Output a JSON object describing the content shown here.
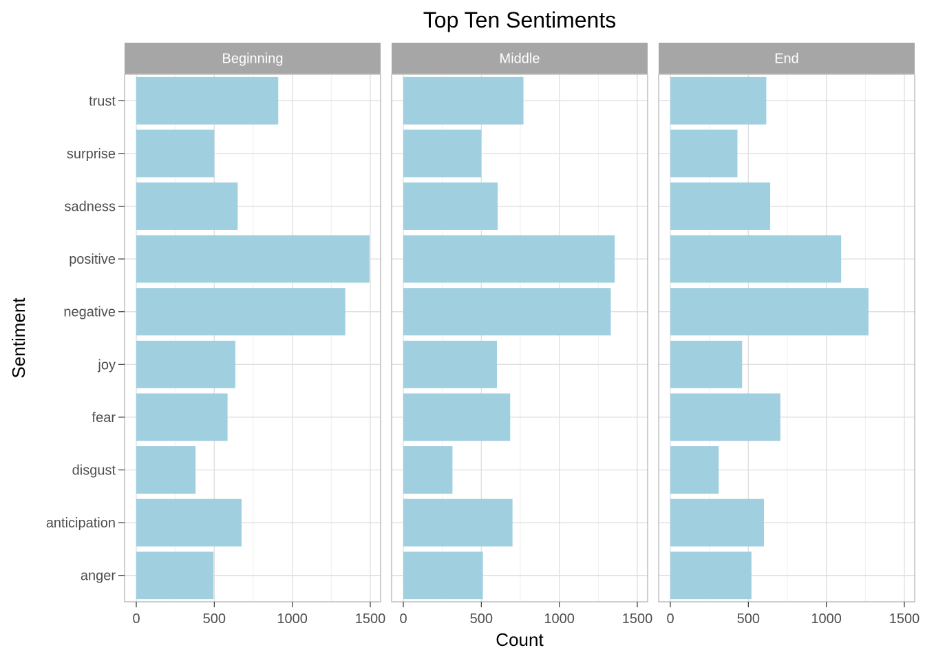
{
  "chart_data": {
    "type": "bar",
    "orientation": "horizontal",
    "title": "Top Ten Sentiments",
    "xlabel": "Count",
    "ylabel": "Sentiment",
    "xlim": [
      0,
      1550
    ],
    "xticks": [
      0,
      500,
      1000,
      1500
    ],
    "xtick_labels": [
      "0",
      "500",
      "1000",
      "1500"
    ],
    "grid": true,
    "categories": [
      "trust",
      "surprise",
      "sadness",
      "positive",
      "negative",
      "joy",
      "fear",
      "disgust",
      "anticipation",
      "anger"
    ],
    "facets": [
      {
        "name": "Beginning",
        "values": [
          910,
          500,
          650,
          1495,
          1340,
          635,
          585,
          380,
          675,
          495
        ]
      },
      {
        "name": "Middle",
        "values": [
          770,
          500,
          605,
          1355,
          1330,
          600,
          685,
          315,
          700,
          510
        ]
      },
      {
        "name": "End",
        "values": [
          615,
          430,
          640,
          1095,
          1270,
          460,
          705,
          310,
          600,
          520
        ]
      }
    ],
    "colors": {
      "bar": "#a0cfe0",
      "strip_background": "#a6a6a6",
      "grid_major": "#dedede",
      "grid_minor": "#efefef",
      "panel_border": "#b3b3b3"
    }
  }
}
